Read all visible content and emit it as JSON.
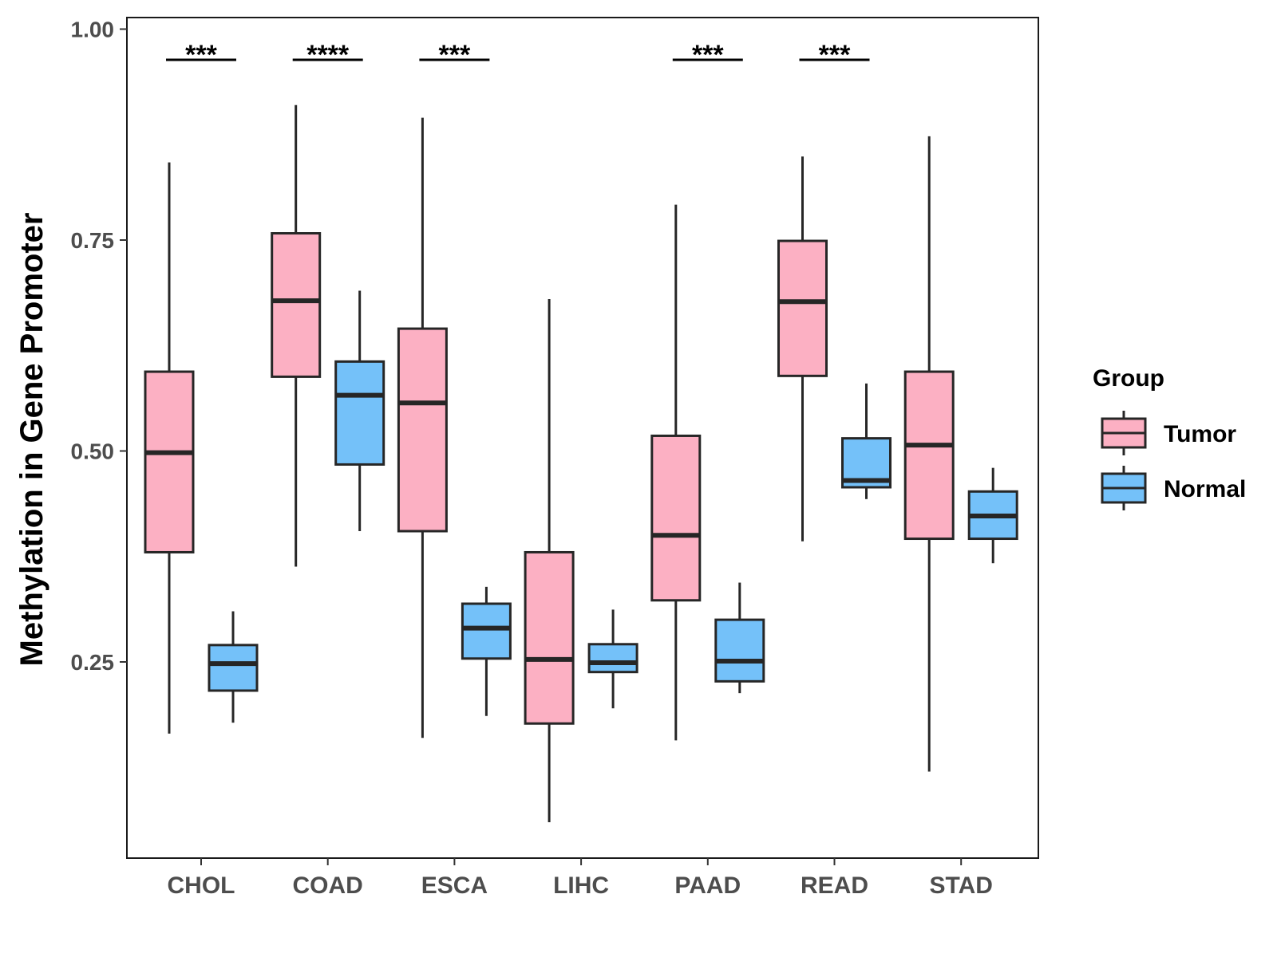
{
  "chart_data": {
    "type": "boxplot",
    "ylabel": "Methylation in Gene Promoter",
    "xlabel": "",
    "ylim": [
      0.0,
      1.0
    ],
    "yticks": [
      0.25,
      0.5,
      0.75,
      1.0
    ],
    "ytick_labels": [
      "0.25",
      "0.50",
      "0.75",
      "1.00"
    ],
    "categories": [
      "CHOL",
      "COAD",
      "ESCA",
      "LIHC",
      "PAAD",
      "READ",
      "STAD"
    ],
    "legend": {
      "title": "Group",
      "placement": "right",
      "entries": [
        {
          "name": "Tumor",
          "color": "#FCB0C3"
        },
        {
          "name": "Normal",
          "color": "#74C1F9"
        }
      ]
    },
    "series": [
      {
        "name": "Tumor",
        "color": "#FCB0C3",
        "boxes": [
          {
            "min": 0.165,
            "q1": 0.38,
            "median": 0.498,
            "q3": 0.594,
            "max": 0.842
          },
          {
            "min": 0.363,
            "q1": 0.588,
            "median": 0.678,
            "q3": 0.758,
            "max": 0.91
          },
          {
            "min": 0.16,
            "q1": 0.405,
            "median": 0.557,
            "q3": 0.645,
            "max": 0.895
          },
          {
            "min": 0.06,
            "q1": 0.177,
            "median": 0.253,
            "q3": 0.38,
            "max": 0.68
          },
          {
            "min": 0.157,
            "q1": 0.323,
            "median": 0.4,
            "q3": 0.518,
            "max": 0.792
          },
          {
            "min": 0.393,
            "q1": 0.589,
            "median": 0.677,
            "q3": 0.749,
            "max": 0.849
          },
          {
            "min": 0.12,
            "q1": 0.396,
            "median": 0.507,
            "q3": 0.594,
            "max": 0.873
          }
        ]
      },
      {
        "name": "Normal",
        "color": "#74C1F9",
        "boxes": [
          {
            "min": 0.178,
            "q1": 0.216,
            "median": 0.248,
            "q3": 0.27,
            "max": 0.31
          },
          {
            "min": 0.405,
            "q1": 0.484,
            "median": 0.566,
            "q3": 0.606,
            "max": 0.69
          },
          {
            "min": 0.186,
            "q1": 0.254,
            "median": 0.29,
            "q3": 0.319,
            "max": 0.339
          },
          {
            "min": 0.195,
            "q1": 0.238,
            "median": 0.249,
            "q3": 0.271,
            "max": 0.312
          },
          {
            "min": 0.213,
            "q1": 0.227,
            "median": 0.251,
            "q3": 0.3,
            "max": 0.344
          },
          {
            "min": 0.443,
            "q1": 0.457,
            "median": 0.465,
            "q3": 0.515,
            "max": 0.58
          },
          {
            "min": 0.367,
            "q1": 0.396,
            "median": 0.423,
            "q3": 0.452,
            "max": 0.48
          }
        ]
      }
    ],
    "significance": [
      {
        "category": "CHOL",
        "label": "***"
      },
      {
        "category": "COAD",
        "label": "****"
      },
      {
        "category": "ESCA",
        "label": "***"
      },
      {
        "category": "PAAD",
        "label": "***"
      },
      {
        "category": "READ",
        "label": "***"
      }
    ]
  }
}
